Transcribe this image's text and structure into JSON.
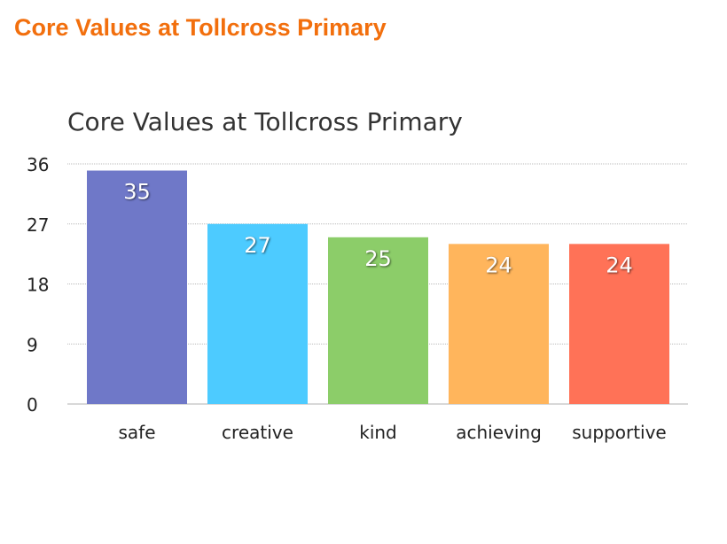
{
  "header": {
    "title": "Core Values at Tollcross Primary"
  },
  "chart_data": {
    "type": "bar",
    "title": "Core Values at Tollcross Primary",
    "xlabel": "",
    "ylabel": "",
    "categories": [
      "safe",
      "creative",
      "kind",
      "achieving",
      "supportive"
    ],
    "values": [
      35,
      27,
      25,
      24,
      24
    ],
    "colors": [
      "#6f78c8",
      "#4dcbff",
      "#8ccd69",
      "#ffb55c",
      "#ff7257"
    ],
    "ylim": [
      0,
      36
    ],
    "yticks": [
      0,
      9,
      18,
      27,
      36
    ],
    "grid": true,
    "data_labels": true
  }
}
